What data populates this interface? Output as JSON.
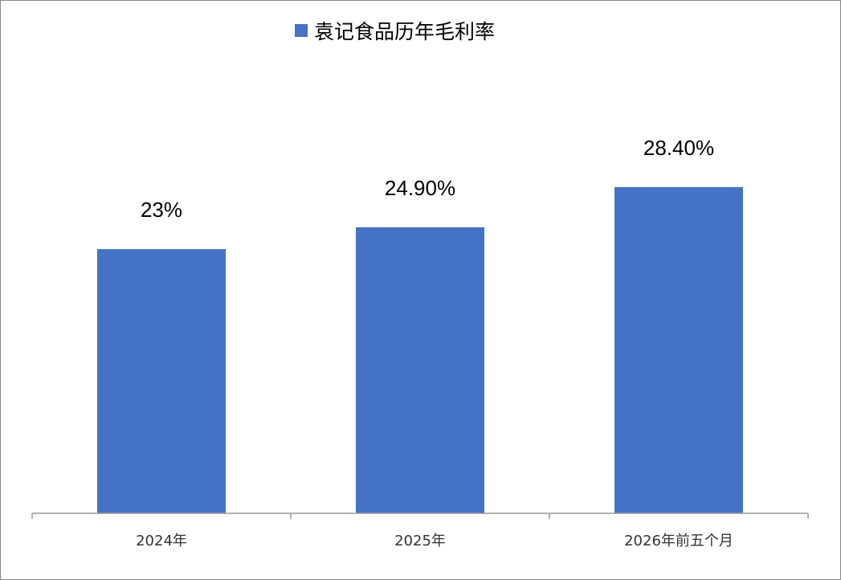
{
  "chart_data": {
    "type": "bar",
    "title": "",
    "legend": [
      "袁记食品历年毛利率"
    ],
    "legend_position": "top-center",
    "categories": [
      "2024年",
      "2025年",
      "2026年前五个月"
    ],
    "series": [
      {
        "name": "袁记食品历年毛利率",
        "values": [
          23,
          24.9,
          28.4
        ],
        "data_labels": [
          "23%",
          "24.90%",
          "28.40%"
        ]
      }
    ],
    "xlabel": "",
    "ylabel": "",
    "ylim": [
      0,
      30
    ],
    "grid": false,
    "bar_color": "#4472C4"
  }
}
